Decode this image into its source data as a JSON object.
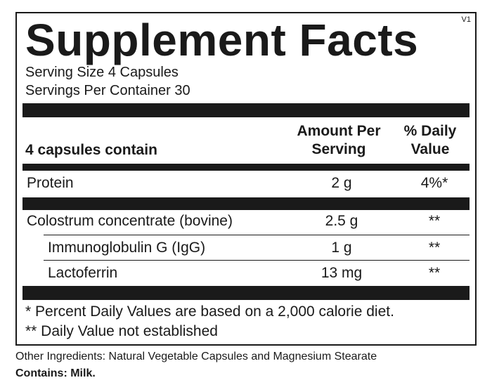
{
  "panel": {
    "title": "Supplement Facts",
    "version": "V1",
    "serving_size": "Serving Size 4 Capsules",
    "servings_per_container": "Servings Per Container  30"
  },
  "table": {
    "header": {
      "col_name": "4 capsules contain",
      "col_amount_line1": "Amount Per",
      "col_amount_line2": "Serving",
      "col_dv_line1": "% Daily",
      "col_dv_line2": "Value"
    },
    "rows": [
      {
        "name": "Protein",
        "amount": "2 g",
        "dv": "4%*"
      },
      {
        "name": "Colostrum concentrate (bovine)",
        "amount": "2.5 g",
        "dv": "**"
      },
      {
        "name": "Immunoglobulin G (IgG)",
        "amount": "1 g",
        "dv": "**"
      },
      {
        "name": "Lactoferrin",
        "amount": "13 mg",
        "dv": "**"
      }
    ]
  },
  "footnotes": {
    "percent_dv": "* Percent Daily Values are based on a 2,000 calorie diet.",
    "not_established": "** Daily Value not established"
  },
  "other_ingredients": "Other Ingredients: Natural Vegetable Capsules and Magnesium Stearate",
  "contains": "Contains: Milk."
}
